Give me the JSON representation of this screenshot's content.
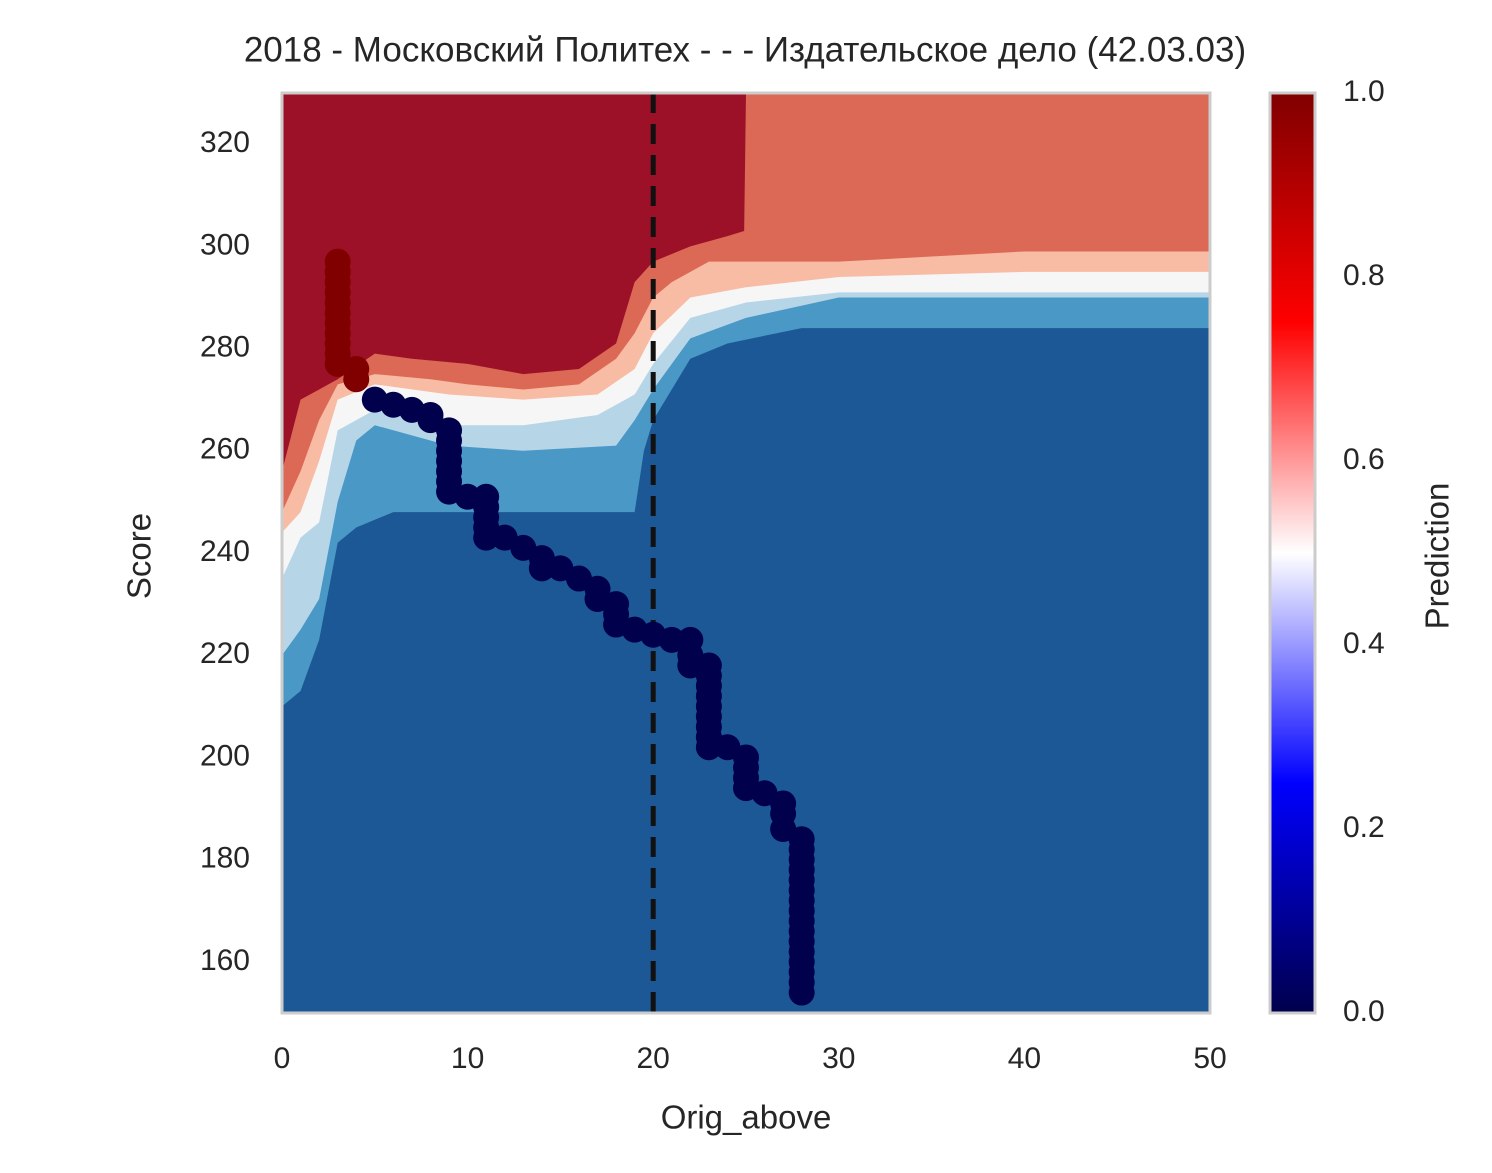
{
  "chart_data": {
    "type": "contour",
    "title": "2018 - Московский Политех - - - Издательское дело (42.03.03)",
    "x_label": "Orig_above",
    "y_label": "Score",
    "xlim": [
      0,
      50
    ],
    "ylim": [
      150,
      330
    ],
    "xticks": [
      0,
      10,
      20,
      30,
      40,
      50
    ],
    "yticks": [
      160,
      180,
      200,
      220,
      240,
      260,
      280,
      300,
      320
    ],
    "grid": false,
    "bands": [
      {
        "color": "#1c5796"
      },
      {
        "color": "#4a98c6",
        "x": [
          0,
          1,
          2,
          3,
          4,
          6,
          9,
          13,
          19,
          19.5,
          20,
          22,
          24,
          28,
          50
        ],
        "y": [
          210,
          213,
          223,
          242,
          245,
          248,
          248,
          248,
          248,
          260,
          266,
          278,
          281,
          284,
          284
        ]
      },
      {
        "color": "#b6d6e8",
        "x": [
          0,
          1,
          2,
          3,
          4,
          5,
          9,
          13,
          18,
          19,
          20,
          22,
          25,
          30,
          50
        ],
        "y": [
          220,
          225,
          231,
          250,
          262,
          265,
          261,
          260,
          261,
          266,
          272,
          282,
          286,
          290,
          290
        ]
      },
      {
        "color": "#f6f6f6",
        "x": [
          0,
          1,
          2,
          3,
          5,
          9,
          13,
          17,
          19,
          20,
          22,
          25,
          30,
          50
        ],
        "y": [
          235,
          243,
          246,
          264,
          268,
          265,
          265,
          267,
          271,
          277,
          286,
          289,
          291,
          291
        ]
      },
      {
        "color": "#f8bba4",
        "x": [
          0,
          1,
          2,
          3,
          5,
          9,
          13,
          17,
          19,
          20,
          22,
          25,
          30,
          40,
          50
        ],
        "y": [
          244,
          248,
          258,
          270,
          273,
          271,
          270,
          271,
          276,
          283,
          290,
          292,
          294,
          295,
          295
        ]
      },
      {
        "color": "#db6955",
        "x": [
          0,
          1,
          2,
          3,
          5,
          8,
          10,
          13,
          16,
          18,
          19,
          20,
          21,
          23,
          30,
          35,
          40,
          50
        ],
        "y": [
          248,
          256,
          266,
          273,
          275,
          274,
          273,
          272,
          273,
          278,
          283,
          290,
          293,
          297,
          297,
          298,
          299,
          299
        ]
      },
      {
        "color": "#9c1127",
        "x": [
          0,
          1,
          2,
          3,
          5,
          7,
          10,
          13,
          16,
          18,
          19,
          20,
          22,
          24,
          24.9,
          25,
          50
        ],
        "y": [
          256,
          270,
          272,
          274,
          279,
          278,
          277,
          275,
          276,
          281,
          293,
          297,
          300,
          302,
          303,
          330,
          330
        ]
      }
    ],
    "series": [
      {
        "color": "#800000",
        "x": [
          3,
          3,
          3,
          3,
          3,
          3,
          3,
          3,
          3,
          3,
          3,
          4,
          4
        ],
        "y": [
          297,
          295,
          293,
          291,
          289,
          287,
          285,
          283,
          281,
          279,
          277,
          276,
          274
        ]
      },
      {
        "color": "#00004c",
        "x": [
          5,
          6,
          7,
          8,
          8,
          9,
          9,
          9,
          9,
          9,
          9,
          9,
          10,
          11,
          11,
          11,
          11,
          11,
          12,
          13,
          14,
          14,
          15,
          16,
          17,
          17,
          18,
          18,
          18,
          19,
          20,
          21,
          22,
          22,
          22,
          23,
          23,
          23,
          23,
          23,
          23,
          23,
          23,
          23,
          24,
          25,
          25,
          25,
          25,
          26,
          27,
          27,
          27,
          28,
          28,
          28,
          28,
          28,
          28,
          28,
          28,
          28,
          28,
          28,
          28,
          28,
          28,
          28,
          28
        ],
        "y": [
          270,
          269,
          268,
          267,
          266,
          264,
          262,
          260,
          258,
          256,
          254,
          252,
          251,
          251,
          249,
          247,
          245,
          243,
          243,
          241,
          239,
          237,
          237,
          235,
          233,
          231,
          230,
          228,
          226,
          225,
          224,
          223,
          223,
          220,
          218,
          218,
          216,
          214,
          212,
          210,
          208,
          206,
          204,
          202,
          202,
          200,
          198,
          196,
          194,
          193,
          191,
          189,
          186,
          184,
          182,
          180,
          178,
          176,
          174,
          172,
          170,
          168,
          166,
          164,
          162,
          160,
          158,
          156,
          154
        ]
      }
    ],
    "vline": {
      "x": 20,
      "color": "#111111"
    },
    "colorbar": {
      "label": "Prediction",
      "lim": [
        0,
        1
      ],
      "ticks": [
        {
          "value": 0,
          "label": "0.0"
        },
        0.2,
        0.4,
        0.6,
        0.8,
        {
          "value": 1,
          "label": "1.0"
        }
      ],
      "colormap": [
        "#00004c",
        "#0000ff",
        "#ffffff",
        "#ff0000",
        "#800000"
      ]
    }
  }
}
